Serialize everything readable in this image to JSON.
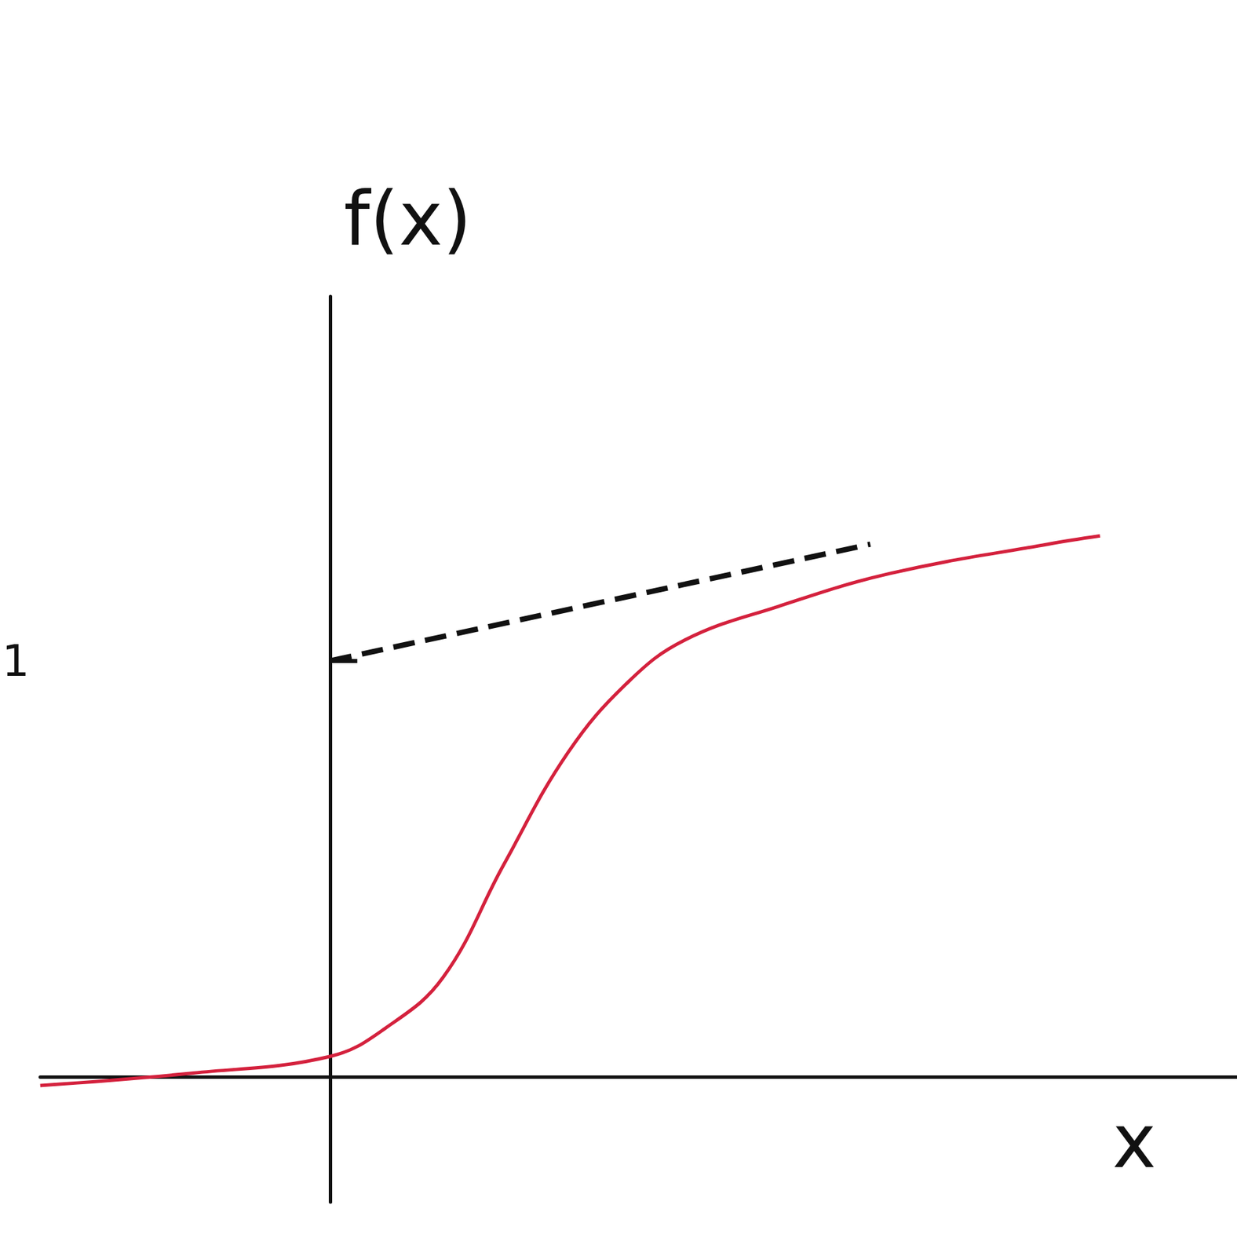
{
  "chart_data": {
    "type": "line",
    "x_label": "x",
    "y_label": "f(x)",
    "x": [
      -0.72,
      -0.34,
      0,
      0.14,
      0.28,
      0.43,
      0.59,
      0.74,
      0.88,
      1.11,
      1.39,
      1.78,
      1.91
    ],
    "series": [
      {
        "color": "#d4213d",
        "line_style": "solid",
        "values": [
          -0.02,
          0.01,
          0.05,
          0.12,
          0.24,
          0.51,
          0.78,
          0.95,
          1.05,
          1.13,
          1.21,
          1.28,
          1.3
        ]
      },
      {
        "color": "#111111",
        "line_style": "dashed",
        "x": [
          0,
          1.34
        ],
        "values": [
          1,
          1.28
        ]
      }
    ],
    "xlim": [
      -0.72,
      2.25
    ],
    "ylim": [
      -0.3,
      1.875
    ],
    "yticks": [
      1
    ],
    "tick_labels": "y",
    "grid": false
  }
}
